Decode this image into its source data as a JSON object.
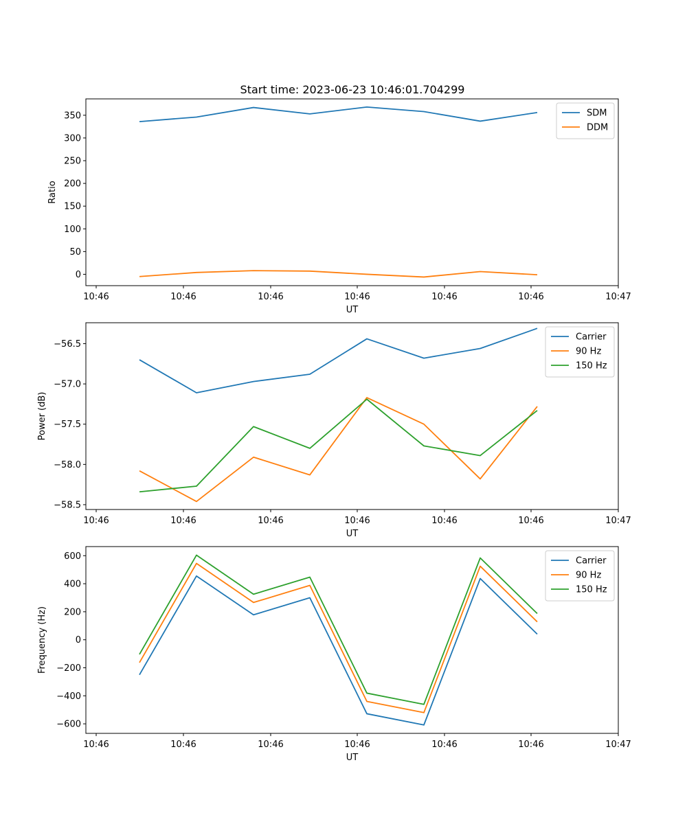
{
  "figure": {
    "title": "Start time: 2023-06-23 10:46:01.704299"
  },
  "chart_data": [
    {
      "type": "line",
      "xlabel": "UT",
      "ylabel": "Ratio",
      "x_tick_labels": [
        "10:46",
        "10:46",
        "10:46",
        "10:46",
        "10:46",
        "10:46",
        "10:46"
      ],
      "y_ticks": [
        0,
        50,
        100,
        150,
        200,
        250,
        300,
        350
      ],
      "y_tick_labels": [
        "0",
        "50",
        "100",
        "150",
        "200",
        "250",
        "300",
        "350"
      ],
      "ylim": [
        -25,
        386
      ],
      "legend": "top-right",
      "grid": false,
      "series": [
        {
          "name": "SDM",
          "color": "#1f77b4",
          "values": [
            336,
            346,
            367,
            353,
            368,
            358,
            337,
            356
          ]
        },
        {
          "name": "DDM",
          "color": "#ff7f0e",
          "values": [
            -5,
            4,
            8,
            7,
            0,
            -6,
            6,
            -1
          ]
        }
      ]
    },
    {
      "type": "line",
      "xlabel": "UT",
      "ylabel": "Power (dB)",
      "x_tick_labels": [
        "10:46",
        "10:46",
        "10:46",
        "10:46",
        "10:46",
        "10:46",
        "10:46"
      ],
      "y_ticks": [
        -58.5,
        -58.0,
        -57.5,
        -57.0,
        -56.5
      ],
      "y_tick_labels": [
        "−58.5",
        "−58.0",
        "−57.5",
        "−57.0",
        "−56.5"
      ],
      "ylim": [
        -58.56,
        -56.24
      ],
      "legend": "top-right",
      "grid": false,
      "series": [
        {
          "name": "Carrier",
          "color": "#1f77b4",
          "values": [
            -56.7,
            -57.11,
            -56.97,
            -56.88,
            -56.44,
            -56.68,
            -56.56,
            -56.31
          ]
        },
        {
          "name": "90 Hz",
          "color": "#ff7f0e",
          "values": [
            -58.08,
            -58.46,
            -57.91,
            -58.13,
            -57.17,
            -57.5,
            -58.18,
            -57.28
          ]
        },
        {
          "name": "150 Hz",
          "color": "#2ca02c",
          "values": [
            -58.34,
            -58.27,
            -57.53,
            -57.8,
            -57.19,
            -57.77,
            -57.89,
            -57.33
          ]
        }
      ]
    },
    {
      "type": "line",
      "xlabel": "UT",
      "ylabel": "Frequency (Hz)",
      "x_tick_labels": [
        "10:46",
        "10:46",
        "10:46",
        "10:46",
        "10:46",
        "10:46",
        "10:46"
      ],
      "y_ticks": [
        -600,
        -400,
        -200,
        0,
        200,
        400,
        600
      ],
      "y_tick_labels": [
        "−600",
        "−400",
        "−200",
        "0",
        "200",
        "400",
        "600"
      ],
      "ylim": [
        -668,
        665
      ],
      "legend": "top-right",
      "grid": false,
      "series": [
        {
          "name": "Carrier",
          "color": "#1f77b4",
          "values": [
            -250,
            455,
            178,
            300,
            -528,
            -608,
            437,
            40
          ]
        },
        {
          "name": "90 Hz",
          "color": "#ff7f0e",
          "values": [
            -163,
            545,
            266,
            388,
            -440,
            -520,
            525,
            128
          ]
        },
        {
          "name": "150 Hz",
          "color": "#2ca02c",
          "values": [
            -104,
            604,
            325,
            447,
            -381,
            -461,
            584,
            187
          ]
        }
      ]
    }
  ]
}
